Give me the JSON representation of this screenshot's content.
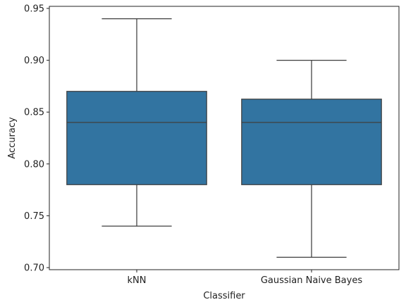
{
  "chart_data": {
    "type": "box",
    "title": "",
    "xlabel": "Classifier",
    "ylabel": "Accuracy",
    "ylim": [
      0.698,
      0.952
    ],
    "yticks": [
      "0.70",
      "0.75",
      "0.80",
      "0.85",
      "0.90",
      "0.95"
    ],
    "categories": [
      "kNN",
      "Gaussian Naive Bayes"
    ],
    "boxes": [
      {
        "category": "kNN",
        "whisker_low": 0.74,
        "q1": 0.78,
        "median": 0.84,
        "q3": 0.87,
        "whisker_high": 0.94
      },
      {
        "category": "Gaussian Naive Bayes",
        "whisker_low": 0.71,
        "q1": 0.78,
        "median": 0.84,
        "q3": 0.8625,
        "whisker_high": 0.9
      }
    ],
    "box_color": "#3274a1",
    "line_color": "#3f3f3f",
    "grid": false,
    "legend": "none"
  }
}
